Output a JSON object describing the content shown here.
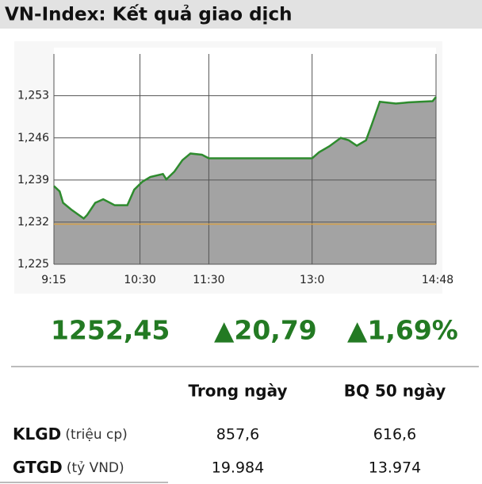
{
  "title": "VN-Index: Kết quả giao dịch",
  "chart_data": {
    "type": "area",
    "x": [
      555,
      560,
      563,
      570,
      581,
      584,
      591,
      598,
      608,
      619,
      625,
      632,
      639,
      650,
      653,
      660,
      667,
      674,
      684,
      690,
      780,
      786,
      795,
      805,
      812,
      819,
      827,
      832,
      839,
      853,
      864,
      874,
      885,
      888
    ],
    "values": [
      1238.0,
      1237.1,
      1235.2,
      1234.1,
      1232.6,
      1233.2,
      1235.2,
      1235.8,
      1234.8,
      1234.8,
      1237.4,
      1238.7,
      1239.5,
      1240.0,
      1239.1,
      1240.4,
      1242.3,
      1243.4,
      1243.2,
      1242.6,
      1242.6,
      1243.6,
      1244.6,
      1246.0,
      1245.6,
      1244.7,
      1245.6,
      1248.2,
      1252.0,
      1251.7,
      1251.9,
      1252.0,
      1252.1,
      1252.8
    ],
    "color": "#2e8b2e",
    "fill": "#a3a3a3",
    "reference_line": 1231.66,
    "reference_color": "#d4a04a",
    "xlim": [
      555,
      888
    ],
    "xticks": [
      {
        "value": 555,
        "label": "9:15"
      },
      {
        "value": 630,
        "label": "10:30"
      },
      {
        "value": 690,
        "label": "11:30"
      },
      {
        "value": 780,
        "label": "13:0"
      },
      {
        "value": 888,
        "label": "14:48"
      }
    ],
    "ylim": [
      1225,
      1261
    ],
    "yticks": [
      {
        "value": 1225,
        "label": "1,225"
      },
      {
        "value": 1232,
        "label": "1,232"
      },
      {
        "value": 1239,
        "label": "1,239"
      },
      {
        "value": 1246,
        "label": "1,246"
      },
      {
        "value": 1253,
        "label": "1,253"
      }
    ],
    "grid": true
  },
  "summary": {
    "value": "1252,45",
    "change": "▲20,79",
    "percent": "▲1,69%"
  },
  "table": {
    "headers": [
      "Trong ngày",
      "BQ 50 ngày"
    ],
    "rows": [
      {
        "label": "KLGD",
        "unit": "(triệu cp)",
        "values": [
          "857,6",
          "616,6"
        ]
      },
      {
        "label": "GTGD",
        "unit": "(tỷ VND)",
        "values": [
          "19.984",
          "13.974"
        ]
      }
    ]
  }
}
